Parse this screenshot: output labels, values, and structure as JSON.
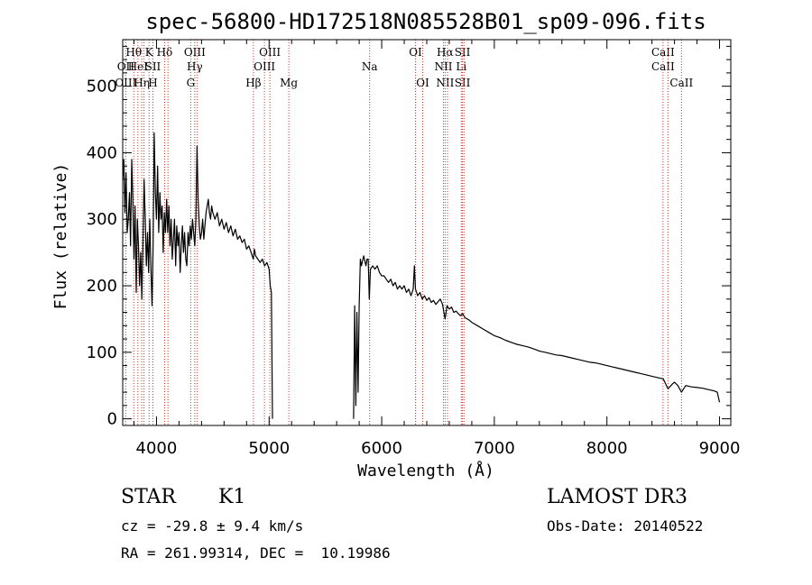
{
  "chart_data": {
    "type": "line",
    "title": "spec-56800-HD172518N085528B01_sp09-096.fits",
    "xlabel": "Wavelength (Å)",
    "ylabel": "Flux (relative)",
    "xlim": [
      3700,
      9100
    ],
    "ylim": [
      -10,
      570
    ],
    "xticks": [
      4000,
      5000,
      6000,
      7000,
      8000,
      9000
    ],
    "yticks": [
      0,
      100,
      200,
      300,
      400,
      500
    ],
    "series": [
      {
        "name": "flux",
        "segments": [
          [
            [
              3700,
              360
            ],
            [
              3710,
              390
            ],
            [
              3720,
              310
            ],
            [
              3730,
              370
            ],
            [
              3740,
              280
            ],
            [
              3750,
              300
            ],
            [
              3760,
              340
            ],
            [
              3770,
              260
            ],
            [
              3780,
              390
            ],
            [
              3790,
              330
            ],
            [
              3800,
              240
            ],
            [
              3810,
              320
            ],
            [
              3820,
              190
            ],
            [
              3830,
              300
            ],
            [
              3840,
              260
            ],
            [
              3850,
              200
            ],
            [
              3860,
              250
            ],
            [
              3870,
              180
            ],
            [
              3880,
              270
            ],
            [
              3890,
              360
            ],
            [
              3900,
              300
            ],
            [
              3910,
              230
            ],
            [
              3920,
              280
            ],
            [
              3930,
              220
            ],
            [
              3940,
              300
            ],
            [
              3950,
              230
            ],
            [
              3960,
              170
            ],
            [
              3970,
              260
            ],
            [
              3980,
              430
            ],
            [
              3990,
              340
            ],
            [
              4000,
              300
            ],
            [
              4010,
              380
            ],
            [
              4020,
              280
            ],
            [
              4030,
              340
            ],
            [
              4040,
              300
            ],
            [
              4050,
              320
            ],
            [
              4060,
              250
            ],
            [
              4070,
              310
            ],
            [
              4080,
              280
            ],
            [
              4090,
              330
            ],
            [
              4100,
              280
            ],
            [
              4110,
              320
            ],
            [
              4120,
              260
            ],
            [
              4130,
              300
            ],
            [
              4140,
              240
            ],
            [
              4150,
              270
            ],
            [
              4160,
              300
            ],
            [
              4170,
              230
            ],
            [
              4180,
              290
            ],
            [
              4190,
              260
            ],
            [
              4200,
              280
            ],
            [
              4210,
              220
            ],
            [
              4220,
              260
            ],
            [
              4230,
              290
            ],
            [
              4240,
              250
            ],
            [
              4250,
              280
            ],
            [
              4260,
              240
            ],
            [
              4270,
              230
            ],
            [
              4280,
              280
            ],
            [
              4290,
              260
            ],
            [
              4300,
              290
            ],
            [
              4310,
              270
            ],
            [
              4320,
              300
            ],
            [
              4330,
              280
            ],
            [
              4340,
              260
            ],
            [
              4350,
              300
            ],
            [
              4360,
              410
            ],
            [
              4370,
              330
            ],
            [
              4380,
              290
            ],
            [
              4390,
              270
            ],
            [
              4400,
              280
            ],
            [
              4410,
              300
            ],
            [
              4420,
              270
            ],
            [
              4430,
              290
            ],
            [
              4440,
              310
            ],
            [
              4450,
              320
            ],
            [
              4460,
              330
            ],
            [
              4470,
              310
            ],
            [
              4480,
              300
            ],
            [
              4490,
              320
            ],
            [
              4500,
              310
            ],
            [
              4520,
              300
            ],
            [
              4540,
              310
            ],
            [
              4560,
              290
            ],
            [
              4580,
              300
            ],
            [
              4600,
              285
            ],
            [
              4620,
              295
            ],
            [
              4640,
              280
            ],
            [
              4660,
              290
            ],
            [
              4680,
              275
            ],
            [
              4700,
              285
            ],
            [
              4720,
              270
            ],
            [
              4740,
              275
            ],
            [
              4760,
              265
            ],
            [
              4780,
              270
            ],
            [
              4800,
              255
            ],
            [
              4820,
              260
            ],
            [
              4840,
              250
            ],
            [
              4860,
              240
            ],
            [
              4870,
              255
            ],
            [
              4880,
              245
            ],
            [
              4900,
              240
            ],
            [
              4920,
              235
            ],
            [
              4940,
              240
            ],
            [
              4960,
              230
            ],
            [
              4980,
              235
            ],
            [
              5000,
              225
            ],
            [
              5010,
              200
            ],
            [
              5020,
              190
            ],
            [
              5030,
              0
            ]
          ],
          [
            [
              5750,
              0
            ],
            [
              5760,
              170
            ],
            [
              5770,
              20
            ],
            [
              5780,
              160
            ],
            [
              5790,
              40
            ],
            [
              5800,
              170
            ],
            [
              5810,
              240
            ],
            [
              5820,
              230
            ],
            [
              5840,
              245
            ],
            [
              5860,
              230
            ],
            [
              5870,
              240
            ],
            [
              5880,
              240
            ],
            [
              5890,
              180
            ],
            [
              5900,
              225
            ],
            [
              5920,
              230
            ],
            [
              5940,
              225
            ],
            [
              5960,
              230
            ],
            [
              5980,
              220
            ],
            [
              6000,
              215
            ],
            [
              6020,
              215
            ],
            [
              6040,
              210
            ],
            [
              6060,
              205
            ],
            [
              6080,
              210
            ],
            [
              6100,
              200
            ],
            [
              6120,
              205
            ],
            [
              6140,
              195
            ],
            [
              6160,
              200
            ],
            [
              6180,
              195
            ],
            [
              6200,
              200
            ],
            [
              6220,
              190
            ],
            [
              6240,
              195
            ],
            [
              6260,
              185
            ],
            [
              6280,
              195
            ],
            [
              6290,
              230
            ],
            [
              6300,
              195
            ],
            [
              6320,
              185
            ],
            [
              6340,
              190
            ],
            [
              6360,
              180
            ],
            [
              6380,
              185
            ],
            [
              6400,
              178
            ],
            [
              6420,
              182
            ],
            [
              6440,
              175
            ],
            [
              6460,
              178
            ],
            [
              6480,
              172
            ],
            [
              6500,
              176
            ],
            [
              6520,
              180
            ],
            [
              6540,
              172
            ],
            [
              6563,
              150
            ],
            [
              6580,
              170
            ],
            [
              6600,
              165
            ],
            [
              6620,
              168
            ],
            [
              6640,
              160
            ],
            [
              6660,
              162
            ],
            [
              6680,
              158
            ],
            [
              6700,
              155
            ],
            [
              6720,
              158
            ],
            [
              6740,
              152
            ],
            [
              6760,
              150
            ],
            [
              6780,
              148
            ],
            [
              6800,
              145
            ],
            [
              6850,
              140
            ],
            [
              6900,
              135
            ],
            [
              6950,
              130
            ],
            [
              7000,
              125
            ],
            [
              7050,
              122
            ],
            [
              7100,
              118
            ],
            [
              7150,
              115
            ],
            [
              7200,
              112
            ],
            [
              7250,
              110
            ],
            [
              7300,
              108
            ],
            [
              7350,
              105
            ],
            [
              7400,
              102
            ],
            [
              7450,
              100
            ],
            [
              7500,
              98
            ],
            [
              7550,
              96
            ],
            [
              7600,
              95
            ],
            [
              7650,
              93
            ],
            [
              7700,
              91
            ],
            [
              7750,
              89
            ],
            [
              7800,
              87
            ],
            [
              7850,
              85
            ],
            [
              7900,
              84
            ],
            [
              7950,
              82
            ],
            [
              8000,
              80
            ],
            [
              8050,
              78
            ],
            [
              8100,
              76
            ],
            [
              8150,
              74
            ],
            [
              8200,
              72
            ],
            [
              8250,
              70
            ],
            [
              8300,
              68
            ],
            [
              8350,
              66
            ],
            [
              8400,
              64
            ],
            [
              8450,
              62
            ],
            [
              8500,
              60
            ],
            [
              8542,
              45
            ],
            [
              8580,
              52
            ],
            [
              8600,
              55
            ],
            [
              8630,
              50
            ],
            [
              8662,
              40
            ],
            [
              8700,
              50
            ],
            [
              8750,
              48
            ],
            [
              8800,
              47
            ],
            [
              8850,
              46
            ],
            [
              8900,
              44
            ],
            [
              8950,
              42
            ],
            [
              8980,
              40
            ],
            [
              9000,
              25
            ]
          ]
        ]
      }
    ],
    "lines": [
      {
        "wl": 3727,
        "top": "",
        "mid": "OII",
        "low": "OIII"
      },
      {
        "wl": 3798,
        "top": "Hθ",
        "mid": "",
        "low": ""
      },
      {
        "wl": 3835,
        "top": "",
        "mid": "HeI",
        "low": ""
      },
      {
        "wl": 3869,
        "top": "",
        "mid": "",
        "low": "Hη"
      },
      {
        "wl": 3889,
        "top": "",
        "mid": "",
        "low": ""
      },
      {
        "wl": 3934,
        "top": "K",
        "mid": "",
        "low": ""
      },
      {
        "wl": 3968,
        "top": "",
        "mid": "SII",
        "low": "H"
      },
      {
        "wl": 4072,
        "top": "Hδ",
        "mid": "",
        "low": ""
      },
      {
        "wl": 4102,
        "top": "",
        "mid": "",
        "low": ""
      },
      {
        "wl": 4304,
        "top": "",
        "mid": "",
        "low": "G"
      },
      {
        "wl": 4340,
        "top": "OIII",
        "mid": "Hγ",
        "low": ""
      },
      {
        "wl": 4363,
        "top": "",
        "mid": "",
        "low": ""
      },
      {
        "wl": 4861,
        "top": "",
        "mid": "",
        "low": "Hβ"
      },
      {
        "wl": 4959,
        "top": "",
        "mid": "OIII",
        "low": ""
      },
      {
        "wl": 5007,
        "top": "OIII",
        "mid": "",
        "low": ""
      },
      {
        "wl": 5175,
        "top": "",
        "mid": "",
        "low": "Mg"
      },
      {
        "wl": 5893,
        "top": "",
        "mid": "Na",
        "low": ""
      },
      {
        "wl": 6300,
        "top": "OI",
        "mid": "",
        "low": ""
      },
      {
        "wl": 6364,
        "top": "",
        "mid": "",
        "low": "OI"
      },
      {
        "wl": 6548,
        "top": "",
        "mid": "NII",
        "low": ""
      },
      {
        "wl": 6563,
        "top": "Hα",
        "mid": "",
        "low": "NII"
      },
      {
        "wl": 6584,
        "top": "",
        "mid": "",
        "low": ""
      },
      {
        "wl": 6707,
        "top": "",
        "mid": "Li",
        "low": ""
      },
      {
        "wl": 6717,
        "top": "SII",
        "mid": "",
        "low": "SII"
      },
      {
        "wl": 6731,
        "top": "",
        "mid": "",
        "low": ""
      },
      {
        "wl": 8498,
        "top": "CaII",
        "mid": "CaII",
        "low": ""
      },
      {
        "wl": 8542,
        "top": "",
        "mid": "",
        "low": ""
      },
      {
        "wl": 8662,
        "top": "",
        "mid": "",
        "low": "CaII"
      }
    ]
  },
  "info": {
    "class": "STAR",
    "subclass": "K1",
    "survey": "LAMOST DR3",
    "cz": "cz = -29.8 ± 9.4 km/s",
    "obs_date": "Obs-Date: 20140522",
    "coords": "RA = 261.99314, DEC =  10.19986"
  },
  "colors": {
    "axis": "#000000",
    "flux": "#000000",
    "line_marker": "#c0392b"
  }
}
